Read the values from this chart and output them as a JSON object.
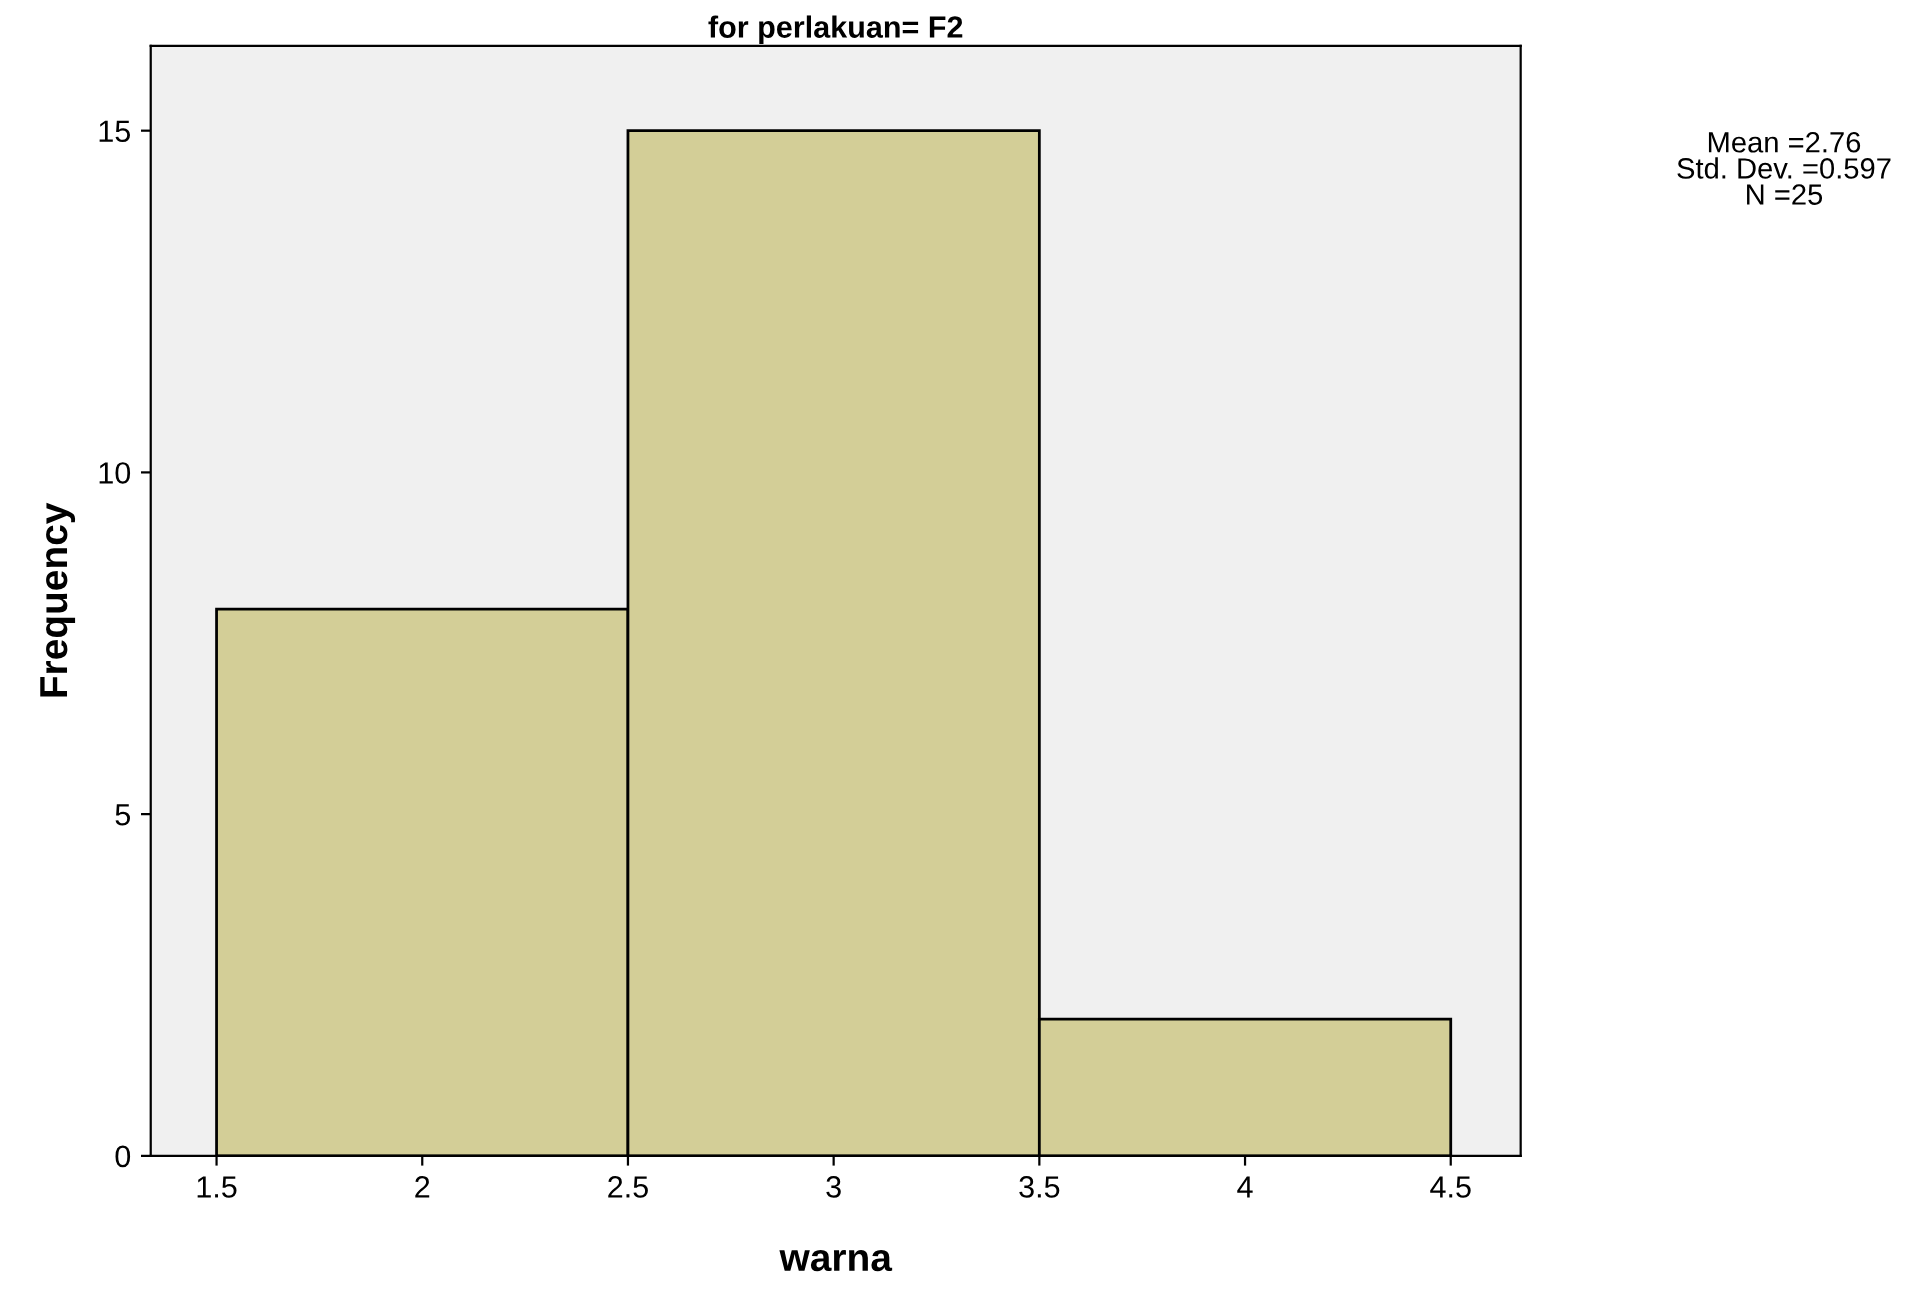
{
  "chart_data": {
    "type": "histogram",
    "title": "for perlakuan= F2",
    "xlabel": "warna",
    "ylabel": "Frequency",
    "bins": [
      1.5,
      2.5,
      3.5,
      4.5
    ],
    "values": [
      8,
      15,
      2
    ],
    "color": "#d3ce97",
    "xlim": [
      1.34,
      4.67
    ],
    "ylim": [
      0,
      16.24
    ],
    "xticks": [
      1.5,
      2,
      2.5,
      3,
      3.5,
      4,
      4.5
    ],
    "yticks": [
      0,
      5,
      10,
      15
    ],
    "annotations": [
      "Mean =2.76\nStd. Dev. =0.597\nN =25"
    ],
    "grid": false,
    "legend": false
  }
}
